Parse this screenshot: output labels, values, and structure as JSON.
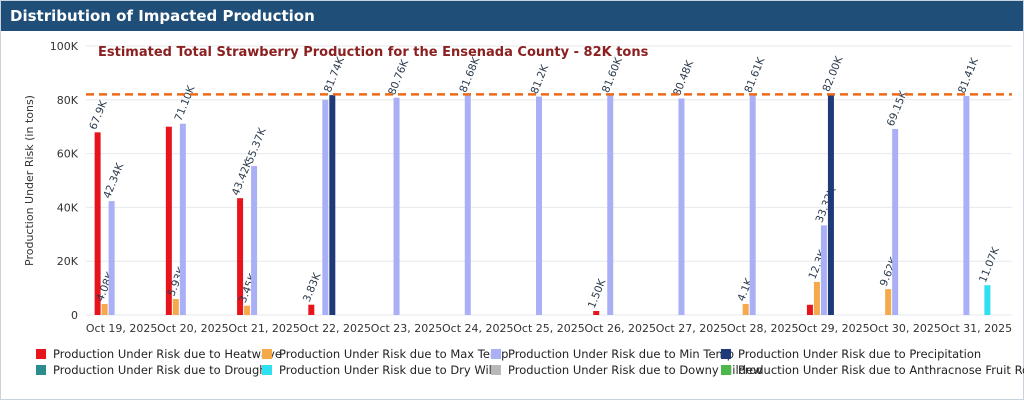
{
  "header": {
    "title": "Distribution of Impacted Production"
  },
  "chart_data": {
    "type": "bar",
    "annotation": "Estimated Total Strawberry Production for the Ensenada County - 82K tons",
    "reference_line": {
      "value": 82000,
      "color": "#ee6a17"
    },
    "ylabel": "Production Under Risk (in tons)",
    "ylim": [
      0,
      100000
    ],
    "y_ticks": [
      0,
      20000,
      40000,
      60000,
      80000,
      100000
    ],
    "y_tick_labels": [
      "0",
      "20K",
      "40K",
      "60K",
      "80K",
      "100K"
    ],
    "grid": true,
    "legend_position": "bottom",
    "categories": [
      "Oct 19, 2025",
      "Oct 20, 2025",
      "Oct 21, 2025",
      "Oct 22, 2025",
      "Oct 23, 2025",
      "Oct 24, 2025",
      "Oct 25, 2025",
      "Oct 26, 2025",
      "Oct 27, 2025",
      "Oct 28, 2025",
      "Oct 29, 2025",
      "Oct 30, 2025",
      "Oct 31, 2025"
    ],
    "series": [
      {
        "name": "Production Under Risk due to Heatwave",
        "color": "#e8141c",
        "values": [
          67900,
          70000,
          43420,
          3830,
          null,
          null,
          null,
          1500,
          null,
          null,
          3800,
          null,
          null
        ],
        "labels": [
          "67.9K",
          "",
          "43.42K",
          "3.83K",
          "",
          "",
          "",
          "1.50K",
          "",
          "",
          "",
          "",
          ""
        ]
      },
      {
        "name": "Production Under Risk due to Max Temp",
        "color": "#f5a94a",
        "values": [
          4080,
          5930,
          3450,
          null,
          null,
          null,
          null,
          null,
          null,
          4100,
          12300,
          9620,
          null
        ],
        "labels": [
          "4.08K",
          "5.93K",
          "3.45K",
          "",
          "",
          "",
          "",
          "",
          "",
          "4.1K",
          "12.3K",
          "9.62K",
          ""
        ]
      },
      {
        "name": "Production Under Risk due to Min Temp",
        "color": "#aab0f5",
        "values": [
          42340,
          71100,
          55370,
          80000,
          80760,
          81680,
          81200,
          81600,
          80480,
          81610,
          33320,
          69150,
          81410
        ],
        "labels": [
          "42.34K",
          "71.10K",
          "55.37K",
          "",
          "80.76K",
          "81.68K",
          "81.2K",
          "81.60K",
          "80.48K",
          "81.61K",
          "33.32K",
          "69.15K",
          "81.41K"
        ]
      },
      {
        "name": "Production Under Risk due to Precipitation",
        "color": "#1e3a78",
        "values": [
          null,
          null,
          null,
          81740,
          null,
          null,
          null,
          null,
          null,
          null,
          82000,
          null,
          null
        ],
        "labels": [
          "",
          "",
          "",
          "81.74K",
          "",
          "",
          "",
          "",
          "",
          "",
          "82.00K",
          "",
          ""
        ]
      },
      {
        "name": "Production Under Risk due to Drought",
        "color": "#2a8c8c",
        "values": [
          null,
          null,
          null,
          null,
          null,
          null,
          null,
          null,
          null,
          null,
          null,
          null,
          null
        ],
        "labels": [
          "",
          "",
          "",
          "",
          "",
          "",
          "",
          "",
          "",
          "",
          "",
          "",
          ""
        ]
      },
      {
        "name": "Production Under Risk due to Dry Wilt",
        "color": "#2ee0f0",
        "values": [
          null,
          null,
          null,
          null,
          null,
          null,
          null,
          null,
          null,
          null,
          null,
          null,
          11070
        ],
        "labels": [
          "",
          "",
          "",
          "",
          "",
          "",
          "",
          "",
          "",
          "",
          "",
          "",
          "11.07K"
        ]
      },
      {
        "name": "Production Under Risk due to Downy Mildew",
        "color": "#b8b8b8",
        "values": [
          null,
          null,
          null,
          null,
          null,
          null,
          null,
          null,
          null,
          null,
          null,
          null,
          null
        ],
        "labels": [
          "",
          "",
          "",
          "",
          "",
          "",
          "",
          "",
          "",
          "",
          "",
          "",
          ""
        ]
      },
      {
        "name": "Production Under Risk due to Anthracnose Fruit Rot",
        "color": "#4cb84c",
        "values": [
          null,
          null,
          null,
          null,
          null,
          null,
          null,
          null,
          null,
          null,
          null,
          null,
          null
        ],
        "labels": [
          "",
          "",
          "",
          "",
          "",
          "",
          "",
          "",
          "",
          "",
          "",
          "",
          ""
        ]
      }
    ]
  }
}
